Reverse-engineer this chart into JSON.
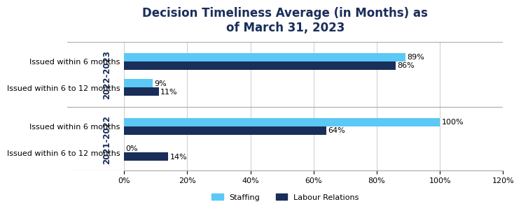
{
  "title": "Decision Timeliness Average (in Months) as\nof March 31, 2023",
  "title_color": "#1a2e5a",
  "title_fontsize": 12,
  "title_fontweight": "bold",
  "groups": [
    {
      "year_label": "2022-2023",
      "categories": [
        "Issued within 6 to 12 months",
        "Issued within 6 months"
      ],
      "staffing": [
        9,
        89
      ],
      "labour_relations": [
        11,
        86
      ]
    },
    {
      "year_label": "2021-2022",
      "categories": [
        "Issued within 6 to 12 months",
        "Issued within 6 months"
      ],
      "staffing": [
        0,
        100
      ],
      "labour_relations": [
        14,
        64
      ]
    }
  ],
  "color_staffing": "#5bc8f5",
  "color_labour": "#1a2e5a",
  "bar_height": 0.32,
  "xlim": [
    0,
    120
  ],
  "xticks": [
    0,
    20,
    40,
    60,
    80,
    100,
    120
  ],
  "xtick_labels": [
    "0%",
    "20%",
    "40%",
    "60%",
    "80%",
    "100%",
    "120%"
  ],
  "legend_labels": [
    "Staffing",
    "Labour Relations"
  ],
  "background_color": "#ffffff",
  "label_fontsize": 8,
  "axis_label_fontsize": 8,
  "year_label_fontsize": 8.5,
  "year_label_color": "#1a2e5a",
  "separator_color": "#aaaaaa",
  "grid_color": "#cccccc",
  "cat_label_fontsize": 8
}
